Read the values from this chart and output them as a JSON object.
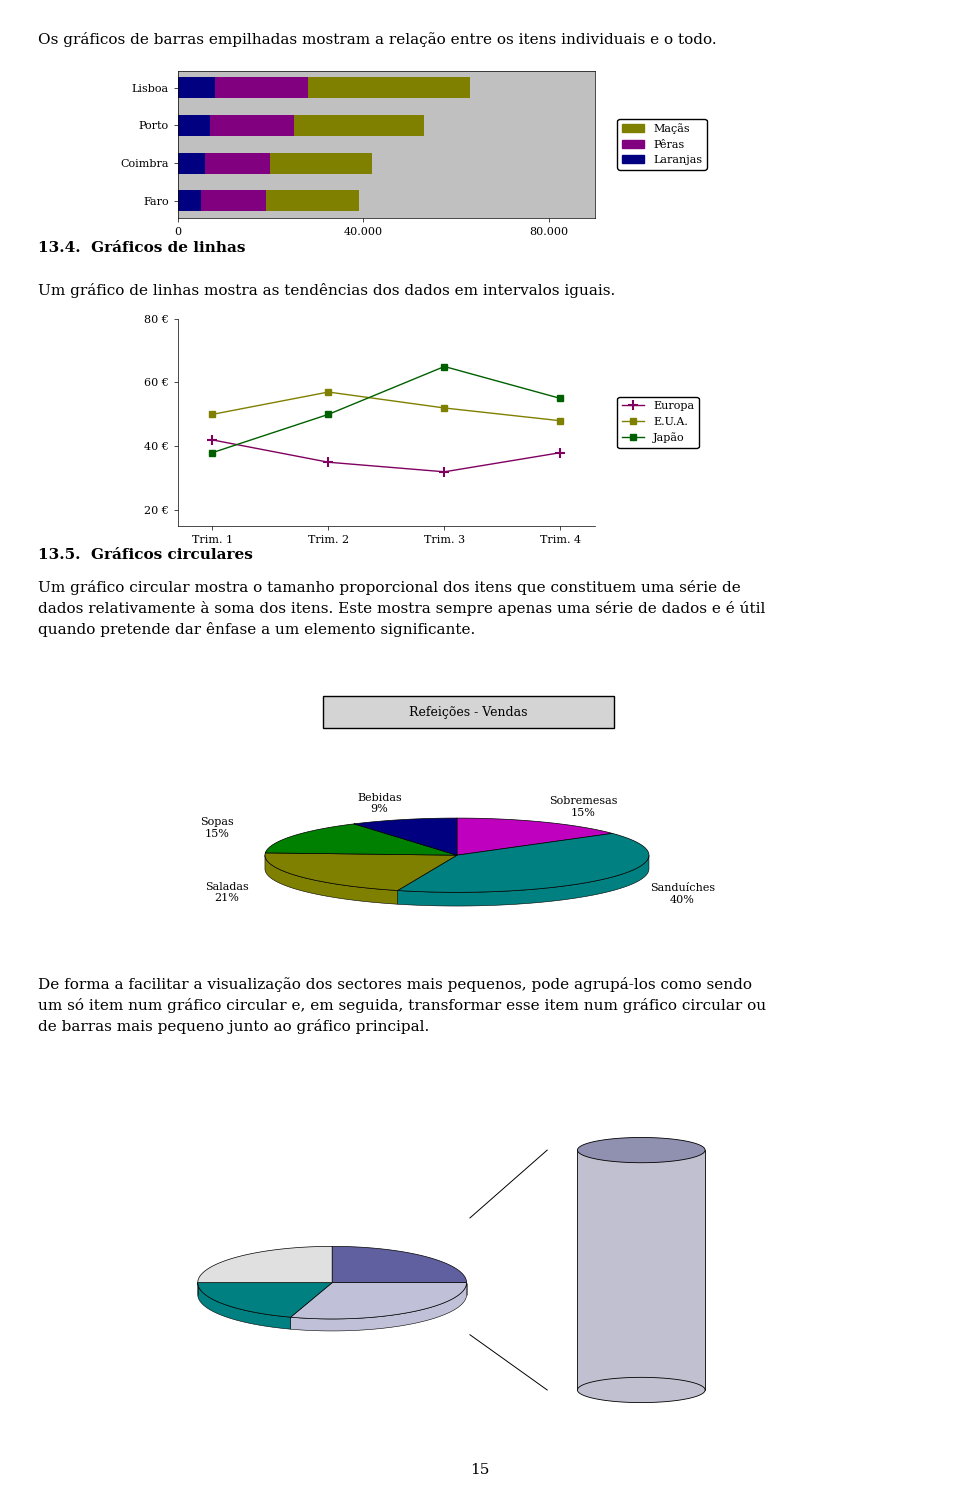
{
  "page_text_top": "Os gráficos de barras empilhadas mostram a relação entre os itens individuais e o todo.",
  "section_13_4_title": "13.4.  Gráficos de linhas",
  "section_13_4_text": "Um gráfico de linhas mostra as tendências dos dados em intervalos iguais.",
  "section_13_5_title": "13.5.  Gráficos circulares",
  "section_13_5_text1_line1": "Um gráfico circular mostra o tamanho proporcional dos itens que constituem uma série de",
  "section_13_5_text1_line2": "dados relativamente à soma dos itens. Este mostra sempre apenas uma série de dados e é útil",
  "section_13_5_text1_line3": "quando pretende dar ênfase a um elemento significante.",
  "section_13_5_text2_line1": "De forma a facilitar a visualização dos sectores mais pequenos, pode agrupá-los como sendo",
  "section_13_5_text2_line2": "um só item num gráfico circular e, em seguida, transformar esse item num gráfico circular ou",
  "section_13_5_text2_line3": "de barras mais pequeno junto ao gráfico principal.",
  "page_number": "15",
  "bar_chart": {
    "categories": [
      "Lisboa",
      "Porto",
      "Coimbra",
      "Faro"
    ],
    "macas": [
      35000,
      28000,
      22000,
      20000
    ],
    "peras": [
      20000,
      18000,
      14000,
      14000
    ],
    "laranjas": [
      8000,
      7000,
      6000,
      5000
    ],
    "colors": {
      "macas": "#808000",
      "peras": "#800080",
      "laranjas": "#000080"
    },
    "legend_labels": [
      "Maçãs",
      "Pêras",
      "Laranjas"
    ],
    "xlim": [
      0,
      90000
    ],
    "xticks": [
      0,
      40000,
      80000
    ],
    "xtick_labels": [
      "0",
      "40.000",
      "80.000"
    ],
    "bg_color": "#c0c0c0"
  },
  "line_chart": {
    "x_labels": [
      "Trim. 1",
      "Trim. 2",
      "Trim. 3",
      "Trim. 4"
    ],
    "europa": [
      42,
      35,
      32,
      38
    ],
    "eua": [
      50,
      57,
      52,
      48
    ],
    "japao": [
      38,
      50,
      65,
      55
    ],
    "colors": {
      "europa": "#800060",
      "eua": "#808000",
      "japao": "#006000"
    },
    "legend_labels": [
      "Europa",
      "E.U.A.",
      "Japão"
    ],
    "ylim": [
      15,
      80
    ],
    "yticks": [
      20,
      40,
      60,
      80
    ],
    "ytick_labels": [
      "20 €",
      "40 €",
      "60 €",
      "80 €"
    ]
  },
  "pie_chart": {
    "title": "Refeições - Vendas",
    "sizes": [
      15,
      40,
      21,
      15,
      9
    ],
    "colors": [
      "#bf00bf",
      "#008080",
      "#808000",
      "#008000",
      "#000080"
    ],
    "label_names": [
      "Sobremesas",
      "Sanduíches",
      "Saladas",
      "Sopas",
      "Bebidas"
    ],
    "label_pcts": [
      "15%",
      "40%",
      "21%",
      "15%",
      "9%"
    ]
  },
  "small_pie": {
    "sizes": [
      25,
      30,
      20,
      25
    ],
    "colors": [
      "#6060a0",
      "#c0c0d8",
      "#008080",
      "#e0e0e0"
    ]
  },
  "small_cyl": {
    "colors": [
      "#9090b0",
      "#c0c0d0"
    ]
  }
}
